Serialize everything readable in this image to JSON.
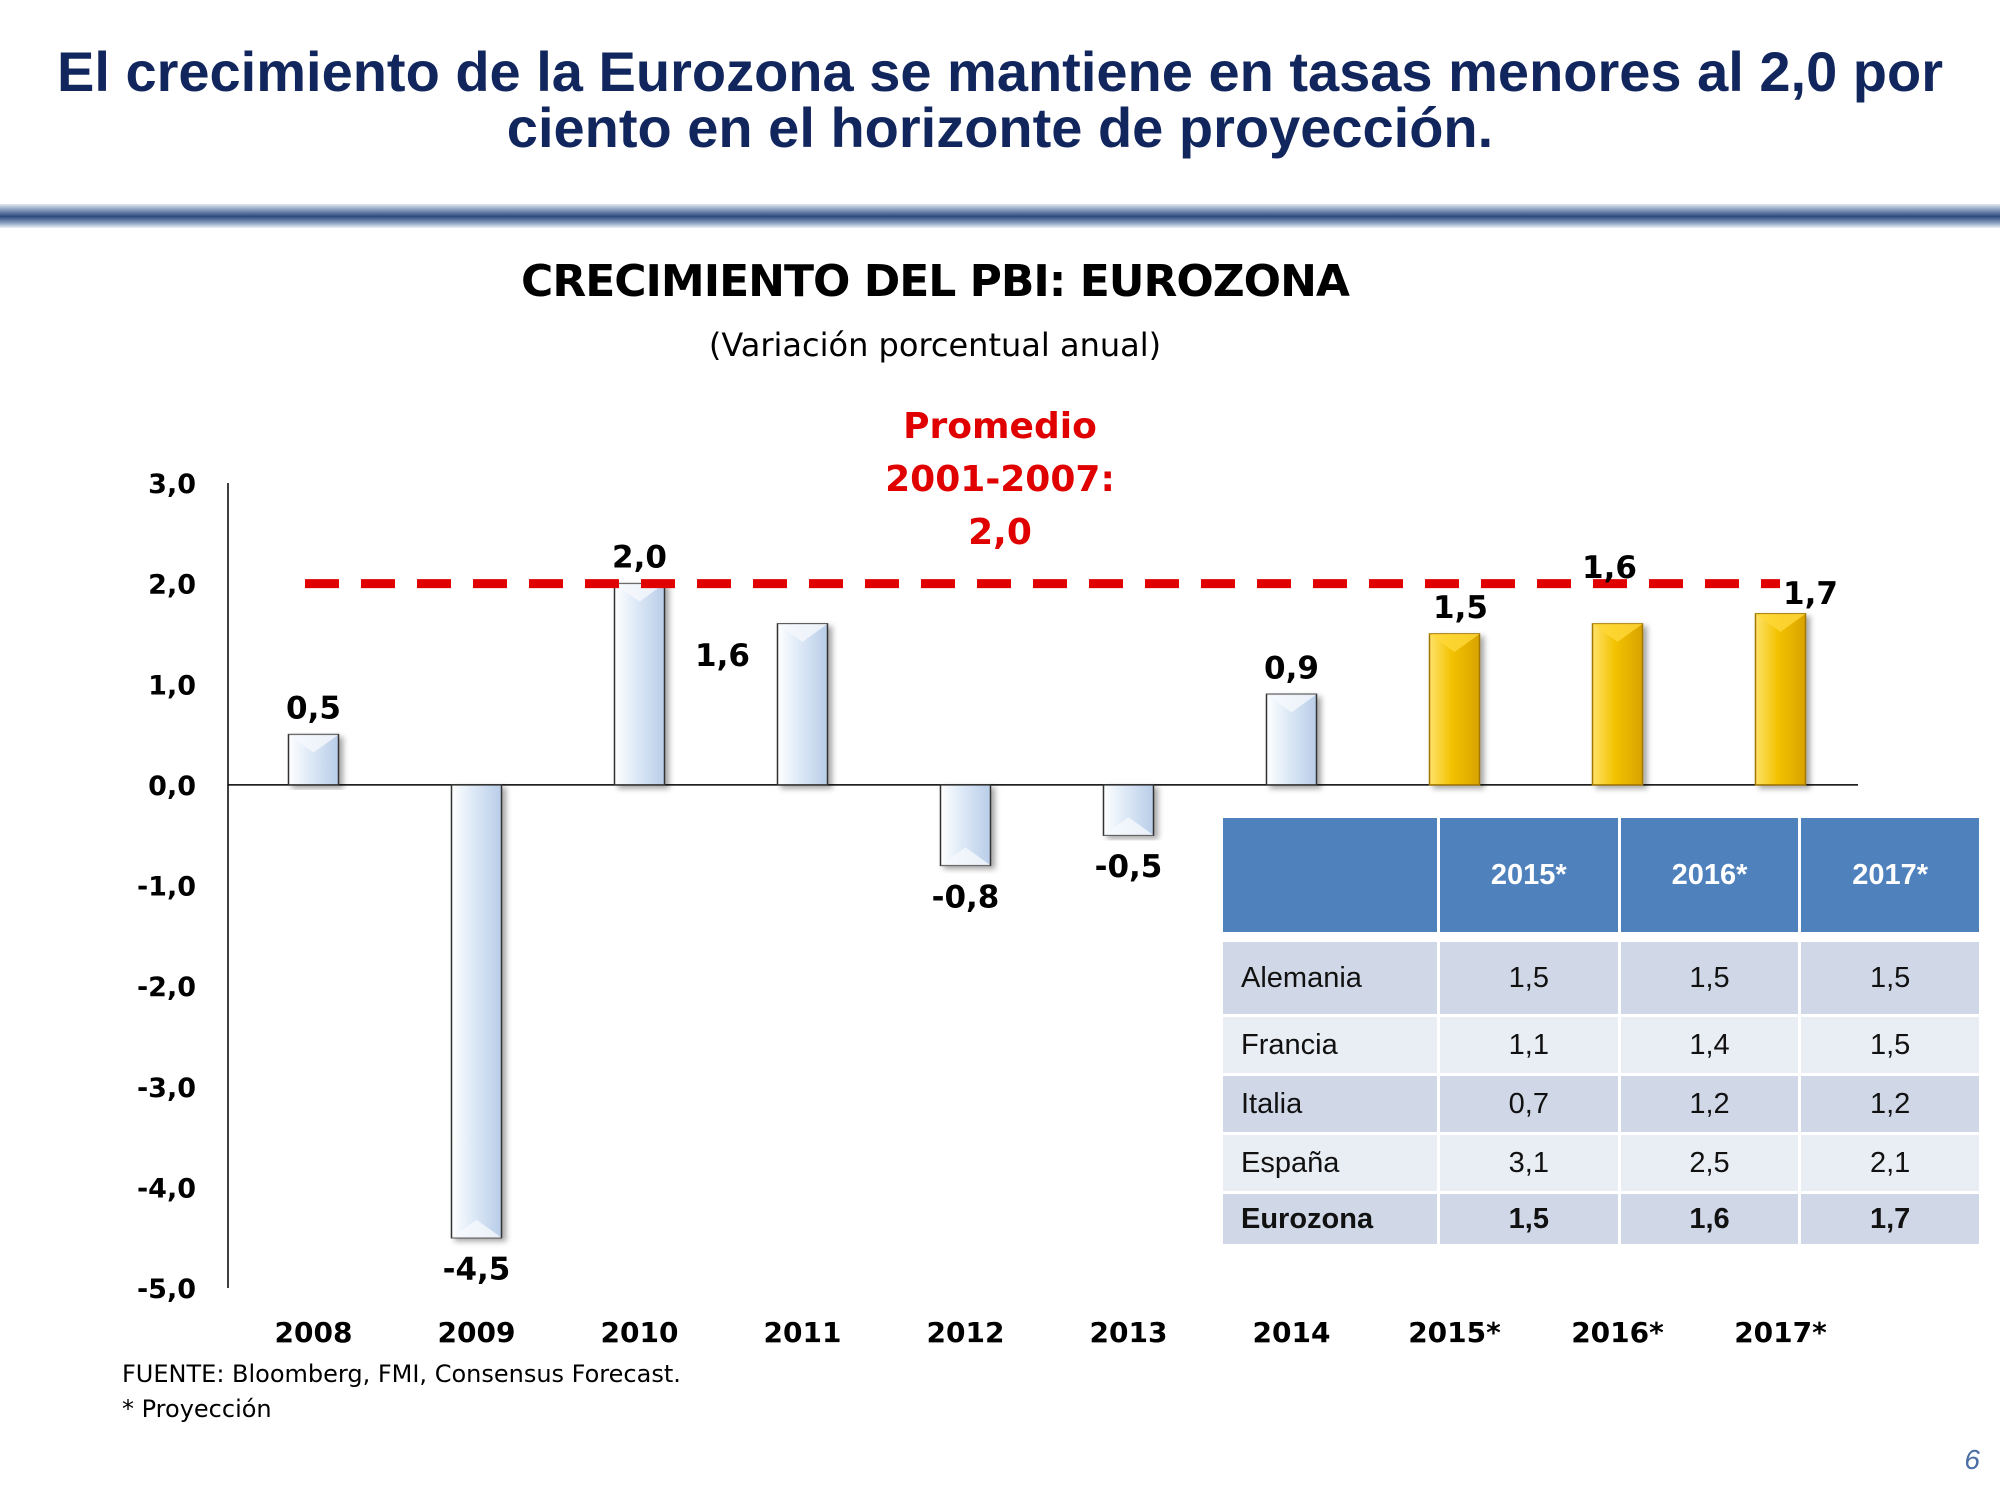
{
  "slide": {
    "title": "El crecimiento de la Eurozona se mantiene en tasas menores al 2,0 por ciento en el horizonte de proyección.",
    "page_number": "6"
  },
  "chart_data": {
    "type": "bar",
    "title": "CRECIMIENTO DEL PBI: EUROZONA",
    "subtitle": "(Variación porcentual anual)",
    "categories": [
      "2008",
      "2009",
      "2010",
      "2011",
      "2012",
      "2013",
      "2014",
      "2015*",
      "2016*",
      "2017*"
    ],
    "values": [
      0.5,
      -4.5,
      2.0,
      1.6,
      -0.8,
      -0.5,
      0.9,
      1.5,
      1.6,
      1.7
    ],
    "value_labels": [
      "0,5",
      "-4,5",
      "2,0",
      "1,6",
      "-0,8",
      "-0,5",
      "0,9",
      "1,5",
      "1,6",
      "1,7"
    ],
    "projected": [
      false,
      false,
      false,
      false,
      false,
      false,
      false,
      true,
      true,
      true
    ],
    "ylim": [
      -5.0,
      3.0
    ],
    "yticks": [
      3.0,
      2.0,
      1.0,
      0.0,
      -1.0,
      -2.0,
      -3.0,
      -4.0,
      -5.0
    ],
    "ytick_labels": [
      "3,0",
      "2,0",
      "1,0",
      "0,0",
      "-1,0",
      "-2,0",
      "-3,0",
      "-4,0",
      "-5,0"
    ],
    "reference_line": {
      "value": 2.0,
      "label_lines": [
        "Promedio",
        "2001-2007:",
        "2,0"
      ],
      "color": "#e00000"
    },
    "colors": {
      "historical": "#dce8f6",
      "projected": "#f2c200"
    },
    "grid": false
  },
  "table": {
    "headers": [
      "",
      "2015*",
      "2016*",
      "2017*"
    ],
    "rows": [
      {
        "country": "Alemania",
        "values": [
          "1,5",
          "1,5",
          "1,5"
        ]
      },
      {
        "country": "Francia",
        "values": [
          "1,1",
          "1,4",
          "1,5"
        ]
      },
      {
        "country": "Italia",
        "values": [
          "0,7",
          "1,2",
          "1,2"
        ]
      },
      {
        "country": "España",
        "values": [
          "3,1",
          "2,5",
          "2,1"
        ]
      },
      {
        "country": "Eurozona",
        "values": [
          "1,5",
          "1,6",
          "1,7"
        ]
      }
    ]
  },
  "footnotes": {
    "source": "FUENTE: Bloomberg, FMI, Consensus Forecast.",
    "note": "* Proyección"
  }
}
